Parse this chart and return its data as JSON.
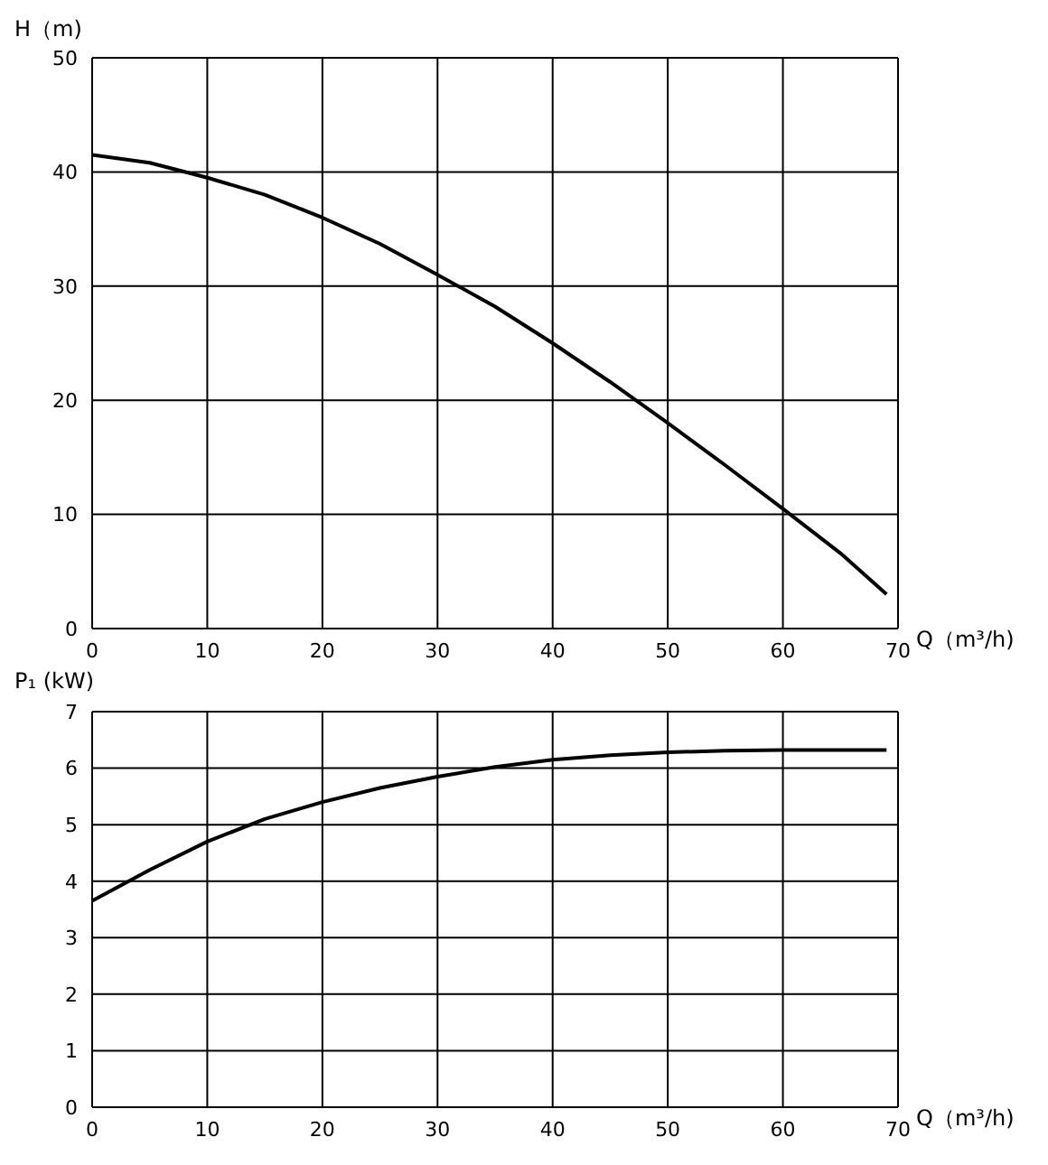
{
  "chart_data": [
    {
      "type": "line",
      "ylabel": "H（m)",
      "xlabel": "Q（m³/h)",
      "x": [
        0,
        5,
        10,
        15,
        20,
        25,
        30,
        35,
        40,
        45,
        50,
        55,
        60,
        65,
        69
      ],
      "series": [
        {
          "color": "#000000",
          "values": [
            41.5,
            40.8,
            39.5,
            38,
            36,
            33.7,
            31,
            28.2,
            25,
            21.6,
            18,
            14.3,
            10.5,
            6.6,
            3
          ]
        }
      ],
      "xlim": [
        0,
        70
      ],
      "xticks": [
        0,
        10,
        20,
        30,
        40,
        50,
        60,
        70
      ],
      "ylim": [
        0,
        50
      ],
      "yticks": [
        0,
        10,
        20,
        30,
        40,
        50
      ],
      "grid": true,
      "marker": "none",
      "line_style": "solid"
    },
    {
      "type": "line",
      "ylabel": "P₁ (kW)",
      "xlabel": "Q（m³/h)",
      "x": [
        0,
        5,
        10,
        15,
        20,
        25,
        30,
        35,
        40,
        45,
        50,
        55,
        60,
        65,
        69
      ],
      "series": [
        {
          "color": "#000000",
          "values": [
            3.65,
            4.2,
            4.7,
            5.1,
            5.4,
            5.65,
            5.85,
            6.02,
            6.15,
            6.23,
            6.28,
            6.31,
            6.32,
            6.32,
            6.32
          ]
        }
      ],
      "xlim": [
        0,
        70
      ],
      "xticks": [
        0,
        10,
        20,
        30,
        40,
        50,
        60,
        70
      ],
      "ylim": [
        0,
        7
      ],
      "yticks": [
        0,
        1,
        2,
        3,
        4,
        5,
        6,
        7
      ],
      "grid": true,
      "marker": "none",
      "line_style": "solid"
    }
  ]
}
